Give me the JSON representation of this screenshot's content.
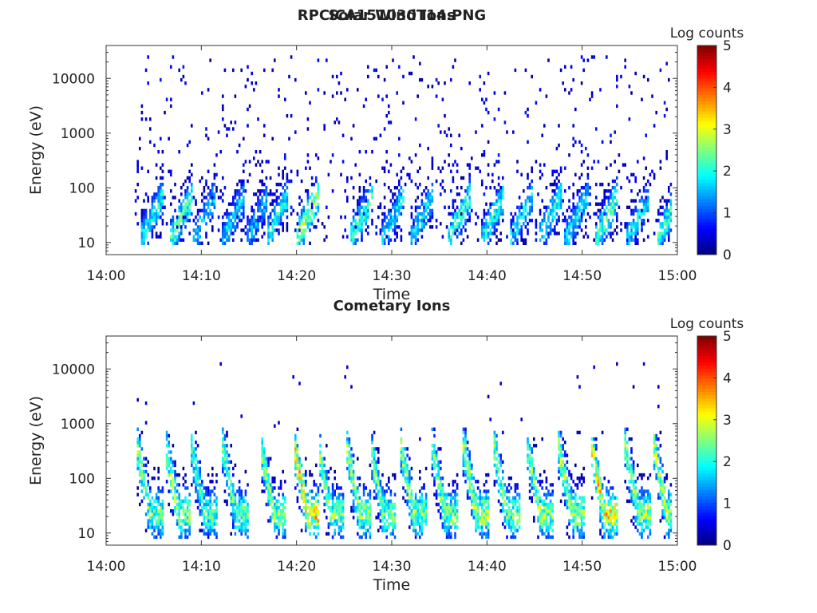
{
  "figure": {
    "title": "RPCICA151030T14.PNG"
  },
  "chart_data": [
    {
      "type": "heatmap",
      "title": "Solar Wind Ions",
      "xlabel": "Time",
      "ylabel": "Energy (eV)",
      "x_ticks": [
        "14:00",
        "14:10",
        "14:20",
        "14:30",
        "14:40",
        "14:50",
        "15:00"
      ],
      "x_range": [
        "14:00",
        "15:00"
      ],
      "y_scale": "log",
      "y_ticks": [
        10,
        100,
        1000,
        10000
      ],
      "y_range": [
        6,
        40000
      ],
      "data_start": "14:03",
      "colorbar": {
        "label": "Log counts",
        "ticks": [
          0,
          1,
          2,
          3,
          4,
          5
        ],
        "range": [
          0,
          5
        ],
        "colormap": "jet"
      },
      "pattern": "sparse background counts 1–3 across 10–20000 eV, bursty bands of 1–3 log counts at 10–300 eV",
      "bursts": [
        {
          "t": "14:04.7",
          "peak": 2.2
        },
        {
          "t": "14:07.8",
          "peak": 2.6
        },
        {
          "t": "14:10.2",
          "peak": 1.8
        },
        {
          "t": "14:13.3",
          "peak": 1.9
        },
        {
          "t": "14:15.8",
          "peak": 1.7
        },
        {
          "t": "14:17.8",
          "peak": 2.2
        },
        {
          "t": "14:21.0",
          "peak": 3.0
        },
        {
          "t": "14:26.7",
          "peak": 2.4
        },
        {
          "t": "14:30.0",
          "peak": 2.0
        },
        {
          "t": "14:33.0",
          "peak": 2.1
        },
        {
          "t": "14:37.0",
          "peak": 2.4
        },
        {
          "t": "14:40.5",
          "peak": 2.2
        },
        {
          "t": "14:43.5",
          "peak": 2.0
        },
        {
          "t": "14:46.5",
          "peak": 2.3
        },
        {
          "t": "14:49.3",
          "peak": 2.0
        },
        {
          "t": "14:52.5",
          "peak": 2.6
        },
        {
          "t": "14:55.8",
          "peak": 2.0
        },
        {
          "t": "14:58.9",
          "peak": 2.4
        }
      ]
    },
    {
      "type": "heatmap",
      "title": "Cometary Ions",
      "xlabel": "Time",
      "ylabel": "Energy (eV)",
      "x_ticks": [
        "14:00",
        "14:10",
        "14:20",
        "14:30",
        "14:40",
        "14:50",
        "15:00"
      ],
      "x_range": [
        "14:00",
        "15:00"
      ],
      "y_scale": "log",
      "y_ticks": [
        10,
        100,
        1000,
        10000
      ],
      "y_range": [
        6,
        40000
      ],
      "data_start": "14:03",
      "colorbar": {
        "label": "Log counts",
        "ticks": [
          0,
          1,
          2,
          3,
          4,
          5
        ],
        "range": [
          0,
          5
        ],
        "colormap": "jet"
      },
      "pattern": "periodic dispersed energy bands 10–600 eV, peaking near 20–40 eV at 2.5–4 log counts, rare counts up to 10000 eV",
      "bursts": [
        {
          "t": "14:04.5",
          "peak": 2.8
        },
        {
          "t": "14:07.5",
          "peak": 3.0
        },
        {
          "t": "14:10.2",
          "peak": 2.6
        },
        {
          "t": "14:13.5",
          "peak": 2.8
        },
        {
          "t": "14:17.5",
          "peak": 3.0
        },
        {
          "t": "14:21.0",
          "peak": 3.8
        },
        {
          "t": "14:23.5",
          "peak": 2.9
        },
        {
          "t": "14:26.5",
          "peak": 3.1
        },
        {
          "t": "14:29.0",
          "peak": 2.8
        },
        {
          "t": "14:32.2",
          "peak": 3.0
        },
        {
          "t": "14:35.5",
          "peak": 2.9
        },
        {
          "t": "14:38.8",
          "peak": 3.2
        },
        {
          "t": "14:42.0",
          "peak": 2.8
        },
        {
          "t": "14:45.5",
          "peak": 3.0
        },
        {
          "t": "14:48.8",
          "peak": 3.1
        },
        {
          "t": "14:52.2",
          "peak": 3.7
        },
        {
          "t": "14:55.8",
          "peak": 3.0
        },
        {
          "t": "14:58.8",
          "peak": 3.2
        }
      ]
    }
  ]
}
